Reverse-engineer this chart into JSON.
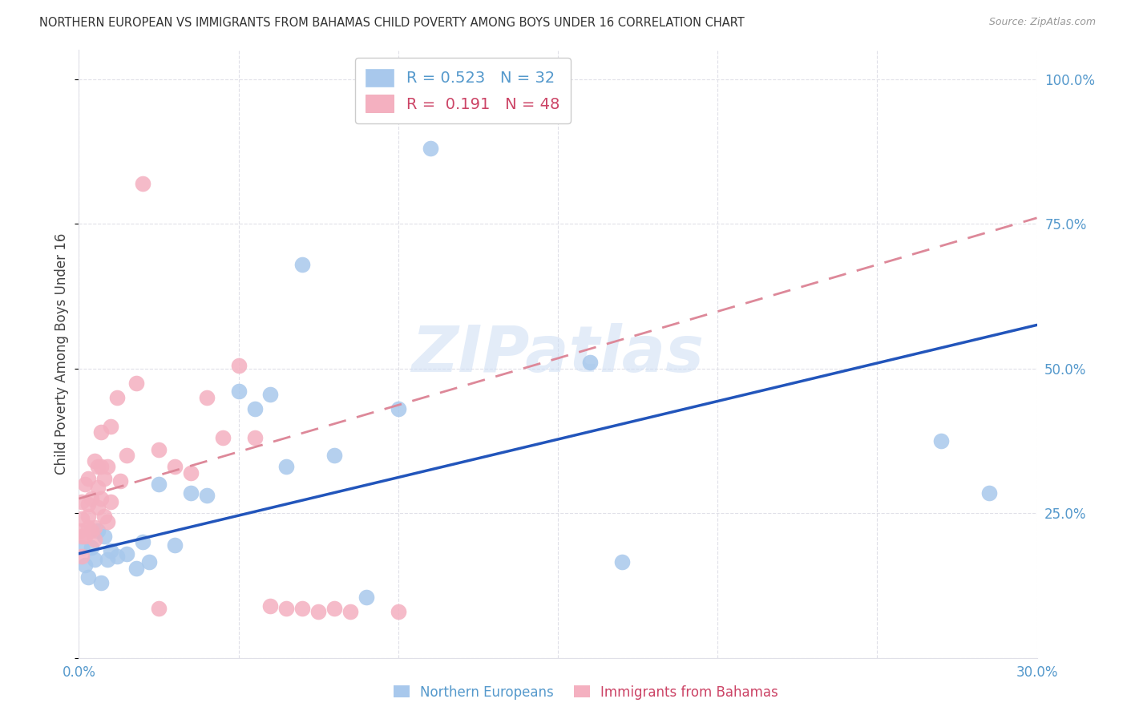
{
  "title": "NORTHERN EUROPEAN VS IMMIGRANTS FROM BAHAMAS CHILD POVERTY AMONG BOYS UNDER 16 CORRELATION CHART",
  "source": "Source: ZipAtlas.com",
  "ylabel": "Child Poverty Among Boys Under 16",
  "xlim": [
    0.0,
    0.3
  ],
  "ylim": [
    0.0,
    1.05
  ],
  "yticks": [
    0.0,
    0.25,
    0.5,
    0.75,
    1.0
  ],
  "ytick_labels": [
    "",
    "25.0%",
    "50.0%",
    "75.0%",
    "100.0%"
  ],
  "xticks": [
    0.0,
    0.05,
    0.1,
    0.15,
    0.2,
    0.25,
    0.3
  ],
  "xtick_labels": [
    "0.0%",
    "",
    "",
    "",
    "",
    "",
    "30.0%"
  ],
  "bg_color": "#ffffff",
  "grid_color": "#e0e0e8",
  "watermark": "ZIPatlas",
  "blue_scatter_color": "#a8c8ec",
  "pink_scatter_color": "#f4b0c0",
  "blue_line_color": "#2255bb",
  "pink_line_color": "#dd8899",
  "axis_color": "#5599cc",
  "legend_R1": "0.523",
  "legend_N1": "32",
  "legend_R2": "0.191",
  "legend_N2": "48",
  "blue_line_x0": 0.0,
  "blue_line_y0": 0.18,
  "blue_line_x1": 0.3,
  "blue_line_y1": 0.575,
  "pink_line_x0": 0.0,
  "pink_line_y0": 0.275,
  "pink_line_x1": 0.3,
  "pink_line_y1": 0.76,
  "blue_scatter_x": [
    0.001,
    0.002,
    0.003,
    0.004,
    0.005,
    0.006,
    0.007,
    0.008,
    0.009,
    0.01,
    0.012,
    0.015,
    0.018,
    0.02,
    0.022,
    0.025,
    0.03,
    0.035,
    0.04,
    0.05,
    0.055,
    0.06,
    0.065,
    0.07,
    0.08,
    0.09,
    0.1,
    0.11,
    0.16,
    0.17,
    0.27,
    0.285
  ],
  "blue_scatter_y": [
    0.19,
    0.16,
    0.14,
    0.19,
    0.17,
    0.22,
    0.13,
    0.21,
    0.17,
    0.185,
    0.175,
    0.18,
    0.155,
    0.2,
    0.165,
    0.3,
    0.195,
    0.285,
    0.28,
    0.46,
    0.43,
    0.455,
    0.33,
    0.68,
    0.35,
    0.105,
    0.43,
    0.88,
    0.51,
    0.165,
    0.375,
    0.285
  ],
  "pink_scatter_x": [
    0.0005,
    0.001,
    0.001,
    0.001,
    0.001,
    0.002,
    0.002,
    0.003,
    0.003,
    0.003,
    0.003,
    0.004,
    0.004,
    0.005,
    0.005,
    0.005,
    0.006,
    0.006,
    0.006,
    0.007,
    0.007,
    0.007,
    0.008,
    0.008,
    0.009,
    0.009,
    0.01,
    0.01,
    0.012,
    0.013,
    0.015,
    0.018,
    0.02,
    0.025,
    0.025,
    0.03,
    0.035,
    0.04,
    0.045,
    0.05,
    0.055,
    0.06,
    0.065,
    0.07,
    0.075,
    0.08,
    0.085,
    0.1
  ],
  "pink_scatter_y": [
    0.22,
    0.175,
    0.21,
    0.24,
    0.27,
    0.21,
    0.3,
    0.225,
    0.245,
    0.265,
    0.31,
    0.22,
    0.275,
    0.205,
    0.225,
    0.34,
    0.26,
    0.295,
    0.33,
    0.275,
    0.33,
    0.39,
    0.245,
    0.31,
    0.235,
    0.33,
    0.27,
    0.4,
    0.45,
    0.305,
    0.35,
    0.475,
    0.82,
    0.36,
    0.085,
    0.33,
    0.32,
    0.45,
    0.38,
    0.505,
    0.38,
    0.09,
    0.085,
    0.085,
    0.08,
    0.085,
    0.08,
    0.08
  ]
}
